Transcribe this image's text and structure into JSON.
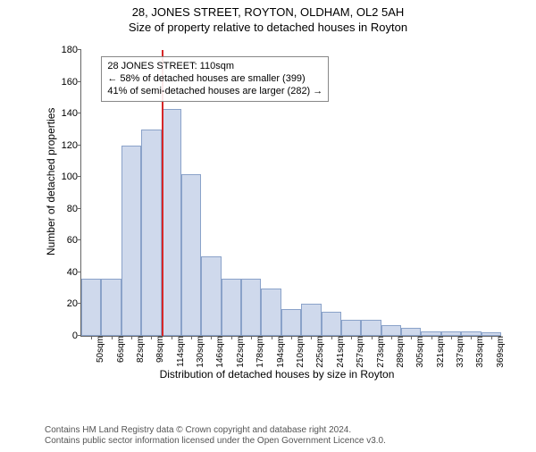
{
  "header": {
    "address": "28, JONES STREET, ROYTON, OLDHAM, OL2 5AH",
    "subtitle": "Size of property relative to detached houses in Royton"
  },
  "chart": {
    "type": "histogram",
    "ylabel": "Number of detached properties",
    "xlabel": "Distribution of detached houses by size in Royton",
    "ylim": [
      0,
      180
    ],
    "ytick_step": 20,
    "yticks": [
      0,
      20,
      40,
      60,
      80,
      100,
      120,
      140,
      160,
      180
    ],
    "xticks": [
      "50sqm",
      "66sqm",
      "82sqm",
      "98sqm",
      "114sqm",
      "130sqm",
      "146sqm",
      "162sqm",
      "178sqm",
      "194sqm",
      "210sqm",
      "225sqm",
      "241sqm",
      "257sqm",
      "273sqm",
      "289sqm",
      "305sqm",
      "321sqm",
      "337sqm",
      "353sqm",
      "369sqm"
    ],
    "values": [
      36,
      36,
      120,
      130,
      143,
      102,
      50,
      36,
      36,
      30,
      17,
      20,
      15,
      10,
      10,
      7,
      5,
      3,
      3,
      3,
      2
    ],
    "bar_fill": "#cfd9ec",
    "bar_stroke": "#8aa2c9",
    "axis_color": "#666666",
    "background": "#ffffff",
    "marker": {
      "color": "#d62728",
      "position_index": 4,
      "fraction_within": 0.0
    },
    "info_box": {
      "line1": "28 JONES STREET: 110sqm",
      "line2": "← 58% of detached houses are smaller (399)",
      "line3": "41% of semi-detached houses are larger (282) →",
      "left_bar_index": 1,
      "top_value": 176
    }
  },
  "footer": {
    "line1": "Contains HM Land Registry data © Crown copyright and database right 2024.",
    "line2": "Contains public sector information licensed under the Open Government Licence v3.0."
  }
}
